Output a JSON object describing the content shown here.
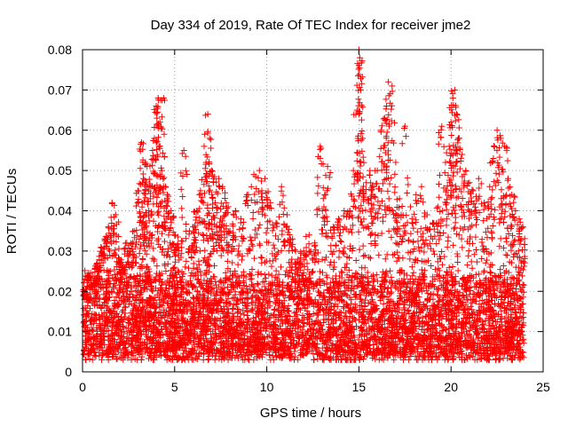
{
  "chart_data": {
    "type": "scatter",
    "title": "Day 334 of 2019, Rate Of TEC Index for receiver jme2",
    "xlabel": "GPS time / hours",
    "ylabel": "ROTI / TECUs",
    "xlim": [
      0,
      25
    ],
    "ylim": [
      0,
      0.08
    ],
    "x_ticks": [
      0,
      5,
      10,
      15,
      20,
      25
    ],
    "y_ticks": [
      0,
      0.01,
      0.02,
      0.03,
      0.04,
      0.05,
      0.06,
      0.07,
      0.08
    ],
    "x_tick_labels": [
      "0",
      "5",
      "10",
      "15",
      "20",
      "25"
    ],
    "y_tick_labels": [
      "0",
      "0.01",
      "0.02",
      "0.03",
      "0.04",
      "0.05",
      "0.06",
      "0.07",
      "0.08"
    ],
    "grid": true,
    "marker": "plus",
    "color": "#ff0000",
    "series": [
      {
        "name": "ROTI",
        "x": [
          0.1,
          0.3,
          0.5,
          0.8,
          1.0,
          1.2,
          1.4,
          1.6,
          1.8,
          2.0,
          2.2,
          2.4,
          2.6,
          2.8,
          3.0,
          3.2,
          3.3,
          3.4,
          3.5,
          3.6,
          3.8,
          3.9,
          4.0,
          4.1,
          4.2,
          4.3,
          4.4,
          4.5,
          4.6,
          4.8,
          5.0,
          5.2,
          5.5,
          5.8,
          6.0,
          6.2,
          6.4,
          6.6,
          6.7,
          6.8,
          6.9,
          7.0,
          7.1,
          7.2,
          7.4,
          7.6,
          7.8,
          8.0,
          8.3,
          8.6,
          9.0,
          9.3,
          9.6,
          9.9,
          10.2,
          10.5,
          10.8,
          11.1,
          11.4,
          11.7,
          12.0,
          12.3,
          12.6,
          12.9,
          13.1,
          13.3,
          13.6,
          13.9,
          14.2,
          14.5,
          14.7,
          14.9,
          15.0,
          15.05,
          15.1,
          15.2,
          15.4,
          15.6,
          15.8,
          16.0,
          16.2,
          16.4,
          16.5,
          16.6,
          16.8,
          17.0,
          17.2,
          17.5,
          17.8,
          18.1,
          18.4,
          18.7,
          19.0,
          19.3,
          19.5,
          19.7,
          19.9,
          20.0,
          20.1,
          20.2,
          20.3,
          20.4,
          20.6,
          20.8,
          21.0,
          21.2,
          21.5,
          21.8,
          22.1,
          22.3,
          22.5,
          22.7,
          22.9,
          23.1,
          23.3,
          23.5,
          23.7,
          23.9
        ],
        "values": [
          0.018,
          0.024,
          0.021,
          0.027,
          0.031,
          0.033,
          0.036,
          0.042,
          0.039,
          0.028,
          0.026,
          0.032,
          0.03,
          0.035,
          0.045,
          0.057,
          0.048,
          0.052,
          0.046,
          0.04,
          0.055,
          0.058,
          0.066,
          0.068,
          0.062,
          0.05,
          0.068,
          0.046,
          0.044,
          0.04,
          0.034,
          0.031,
          0.055,
          0.035,
          0.036,
          0.04,
          0.045,
          0.056,
          0.052,
          0.064,
          0.058,
          0.05,
          0.048,
          0.042,
          0.048,
          0.046,
          0.042,
          0.035,
          0.04,
          0.038,
          0.044,
          0.049,
          0.05,
          0.048,
          0.042,
          0.037,
          0.046,
          0.039,
          0.033,
          0.028,
          0.03,
          0.034,
          0.032,
          0.056,
          0.041,
          0.051,
          0.036,
          0.038,
          0.04,
          0.04,
          0.05,
          0.065,
          0.08,
          0.078,
          0.07,
          0.058,
          0.047,
          0.05,
          0.046,
          0.05,
          0.06,
          0.063,
          0.066,
          0.072,
          0.071,
          0.052,
          0.043,
          0.061,
          0.041,
          0.044,
          0.046,
          0.039,
          0.037,
          0.041,
          0.061,
          0.052,
          0.056,
          0.062,
          0.068,
          0.07,
          0.064,
          0.058,
          0.054,
          0.05,
          0.047,
          0.045,
          0.048,
          0.042,
          0.046,
          0.053,
          0.06,
          0.058,
          0.056,
          0.048,
          0.044,
          0.04,
          0.038,
          0.036
        ],
        "baseline_band": [
          0.004,
          0.024
        ]
      }
    ]
  }
}
